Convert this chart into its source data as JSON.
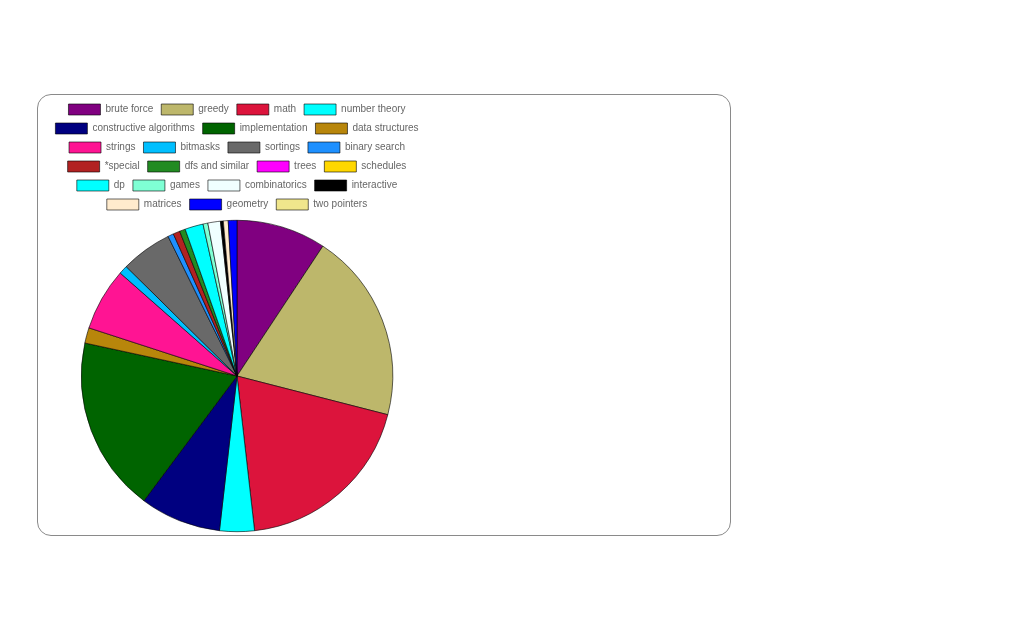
{
  "chart_data": {
    "type": "pie",
    "categories": [
      "brute force",
      "greedy",
      "math",
      "number theory",
      "constructive algorithms",
      "implementation",
      "data structures",
      "strings",
      "bitmasks",
      "sortings",
      "binary search",
      "*special",
      "dfs and similar",
      "trees",
      "schedules",
      "dp",
      "games",
      "combinatorics",
      "interactive",
      "matrices",
      "geometry",
      "two pointers"
    ],
    "values": [
      9.3,
      19.7,
      19.2,
      3.6,
      8.4,
      18.2,
      1.6,
      6.5,
      0.9,
      5.3,
      0.6,
      0.7,
      0.6,
      null,
      null,
      1.9,
      0.5,
      1.3,
      0.3,
      0.5,
      0.9,
      null
    ],
    "colors": [
      "#800080",
      "#bdb76b",
      "#dc143c",
      "#00ffff",
      "#000080",
      "#006400",
      "#b8860b",
      "#ff1493",
      "#00bfff",
      "#696969",
      "#1e90ff",
      "#b22222",
      "#228b22",
      "#ff00ff",
      "#ffd700",
      "#00ffff",
      "#7fffd4",
      "#f0ffff",
      "#000000",
      "#ffebcd",
      "#0000ff",
      "#f0e68c"
    ],
    "legend": "top"
  }
}
